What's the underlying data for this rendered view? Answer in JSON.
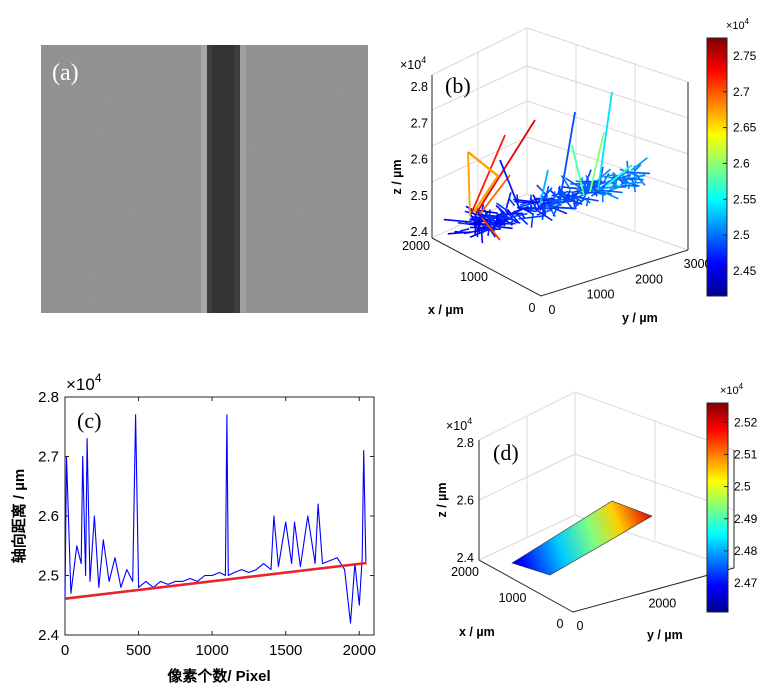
{
  "chart_data": [
    {
      "panel": "a",
      "type": "other",
      "label": "(a)"
    },
    {
      "panel": "b",
      "type": "scatter3d",
      "label": "(b)",
      "xlabel": "x / µm",
      "ylabel": "y / µm",
      "zlabel": "z / µm",
      "z_exponent": "×10^4",
      "x_ticks": [
        "0",
        "1000",
        "2000"
      ],
      "y_ticks": [
        "0",
        "1000",
        "2000",
        "3000"
      ],
      "z_ticks": [
        "2.4",
        "2.5",
        "2.6",
        "2.7",
        "2.8"
      ],
      "xlim": [
        0,
        2000
      ],
      "ylim": [
        0,
        3400
      ],
      "zlim": [
        2.4,
        2.8
      ],
      "colorbar": {
        "exponent": "×10^4",
        "ticks": [
          "2.45",
          "2.5",
          "2.55",
          "2.6",
          "2.65",
          "2.7",
          "2.75"
        ],
        "range": [
          2.415,
          2.775
        ],
        "colormap": "jet"
      }
    },
    {
      "panel": "c",
      "type": "line",
      "label": "(c)",
      "xlabel": "像素个数/ Pixel",
      "ylabel": "轴向距离 / µm",
      "y_exponent": "×10^4",
      "x_ticks": [
        "0",
        "500",
        "1000",
        "1500",
        "2000"
      ],
      "y_ticks": [
        "2.4",
        "2.5",
        "2.6",
        "2.7",
        "2.8"
      ],
      "xlim": [
        0,
        2100
      ],
      "ylim": [
        2.4,
        2.8
      ],
      "series": [
        {
          "color": "#0000ff",
          "x": [
            0,
            10,
            40,
            80,
            110,
            120,
            140,
            150,
            170,
            200,
            230,
            260,
            300,
            340,
            380,
            420,
            460,
            480,
            500,
            550,
            600,
            650,
            700,
            750,
            800,
            850,
            900,
            950,
            1000,
            1050,
            1090,
            1100,
            1110,
            1150,
            1200,
            1250,
            1300,
            1350,
            1400,
            1420,
            1450,
            1500,
            1540,
            1560,
            1600,
            1650,
            1700,
            1720,
            1750,
            1800,
            1850,
            1900,
            1940,
            1970,
            2000,
            2020,
            2030,
            2045
          ],
          "y": [
            2.46,
            2.7,
            2.47,
            2.55,
            2.52,
            2.7,
            2.5,
            2.73,
            2.49,
            2.6,
            2.48,
            2.56,
            2.49,
            2.53,
            2.48,
            2.51,
            2.49,
            2.77,
            2.48,
            2.49,
            2.48,
            2.49,
            2.485,
            2.49,
            2.49,
            2.495,
            2.49,
            2.5,
            2.5,
            2.505,
            2.5,
            2.77,
            2.5,
            2.505,
            2.51,
            2.505,
            2.51,
            2.52,
            2.51,
            2.6,
            2.515,
            2.59,
            2.52,
            2.59,
            2.515,
            2.6,
            2.52,
            2.62,
            2.52,
            2.525,
            2.53,
            2.51,
            2.42,
            2.52,
            2.45,
            2.53,
            2.71,
            2.52
          ]
        },
        {
          "color": "#e8242f",
          "x": [
            0,
            2050
          ],
          "y": [
            2.461,
            2.521
          ]
        }
      ]
    },
    {
      "panel": "d",
      "type": "surface3d",
      "label": "(d)",
      "xlabel": "x / µm",
      "ylabel": "y / µm",
      "zlabel": "z / µm",
      "z_exponent": "×10^4",
      "x_ticks": [
        "0",
        "1000",
        "2000"
      ],
      "y_ticks": [
        "0",
        "2000"
      ],
      "z_ticks": [
        "2.4",
        "2.6",
        "2.8"
      ],
      "xlim": [
        0,
        2000
      ],
      "ylim": [
        0,
        3400
      ],
      "zlim": [
        2.4,
        2.8
      ],
      "colorbar": {
        "exponent": "×10^4",
        "ticks": [
          "2.47",
          "2.48",
          "2.49",
          "2.5",
          "2.51",
          "2.52"
        ],
        "range": [
          2.461,
          2.526
        ],
        "colormap": "jet"
      }
    }
  ]
}
